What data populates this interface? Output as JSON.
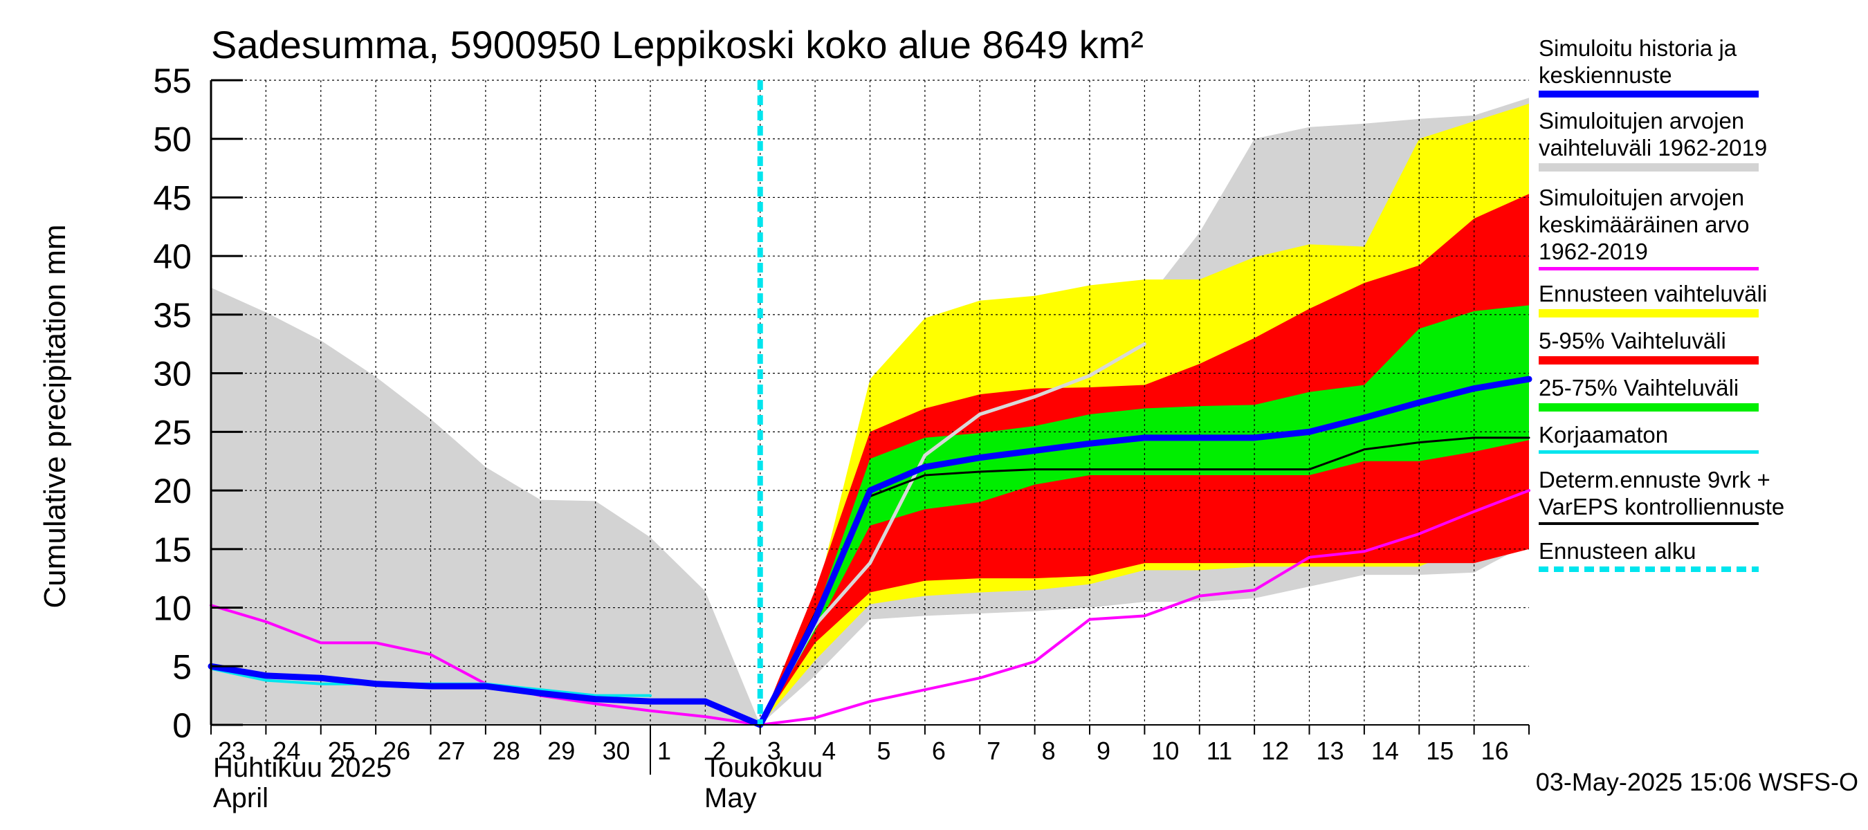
{
  "chart_data": {
    "type": "area",
    "title": "Sadesumma, 5900950 Leppikoski koko alue 8649 km²",
    "ylabel": "Cumulative precipitation   mm",
    "ylim": [
      0,
      55
    ],
    "yticks": [
      0,
      5,
      10,
      15,
      20,
      25,
      30,
      35,
      40,
      45,
      50,
      55
    ],
    "xlim": [
      0,
      24
    ],
    "grid": true,
    "forecast_start_x": 10,
    "day_ticks": [
      "23",
      "24",
      "25",
      "26",
      "27",
      "28",
      "29",
      "30",
      "1",
      "2",
      "3",
      "4",
      "5",
      "6",
      "7",
      "8",
      "9",
      "10",
      "11",
      "12",
      "13",
      "14",
      "15",
      "16"
    ],
    "month_labels": [
      {
        "line1": "Huhtikuu  2025",
        "line2": "April",
        "x": 0
      },
      {
        "line1": "Toukokuu",
        "line2": "May",
        "x": 9
      }
    ],
    "legend_position": "right",
    "series": [
      {
        "name": "Simuloitujen arvojen vaihteluväli 1962-2019",
        "kind": "band",
        "color": "#d3d3d3",
        "x": [
          0,
          1,
          2,
          3,
          4,
          5,
          6,
          7,
          8,
          9,
          10,
          11,
          12,
          13,
          14,
          15,
          16,
          17,
          18,
          19,
          20,
          21,
          22,
          23,
          24
        ],
        "upper": [
          37.3,
          35.2,
          32.8,
          29.7,
          26.1,
          22.0,
          19.2,
          19.1,
          16.0,
          11.4,
          0,
          9.5,
          25.0,
          33.0,
          34.0,
          34.8,
          35.5,
          36.0,
          42.0,
          50.0,
          51.0,
          51.3,
          51.7,
          52.0,
          53.5
        ],
        "lower": [
          0,
          0,
          0,
          0,
          0,
          0,
          0,
          0,
          0,
          0,
          0,
          4.2,
          9.0,
          9.3,
          9.5,
          9.7,
          10.0,
          10.5,
          10.5,
          10.8,
          11.8,
          12.8,
          12.8,
          13.0,
          15.5
        ]
      },
      {
        "name": "Ennusteen vaihteluväli",
        "kind": "band",
        "color": "#ffff00",
        "x": [
          10,
          11,
          12,
          13,
          14,
          15,
          16,
          17,
          18,
          19,
          20,
          21,
          22,
          23,
          24
        ],
        "upper": [
          0,
          10.5,
          29.5,
          34.7,
          36.2,
          36.6,
          37.5,
          38.0,
          38.0,
          39.9,
          41.0,
          40.8,
          50.0,
          51.5,
          53.0
        ],
        "lower": [
          0,
          5.5,
          10.3,
          11.0,
          11.3,
          11.5,
          12.0,
          13.2,
          13.2,
          13.5,
          13.5,
          13.5,
          13.5,
          15.5,
          15.5
        ]
      },
      {
        "name": "5-95% Vaihteluväli",
        "kind": "band",
        "color": "#ff0000",
        "x": [
          10,
          11,
          12,
          13,
          14,
          15,
          16,
          17,
          18,
          19,
          20,
          21,
          22,
          23,
          24
        ],
        "upper": [
          0,
          11.5,
          25.0,
          27.0,
          28.2,
          28.7,
          28.8,
          29.0,
          30.8,
          33.0,
          35.5,
          37.7,
          39.2,
          43.2,
          45.3
        ],
        "lower": [
          0,
          7.0,
          11.3,
          12.3,
          12.5,
          12.5,
          12.7,
          13.8,
          13.8,
          13.8,
          13.8,
          13.8,
          13.8,
          13.8,
          15.0
        ]
      },
      {
        "name": "25-75% Vaihteluväli",
        "kind": "band",
        "color": "#00ee00",
        "x": [
          10,
          11,
          12,
          13,
          14,
          15,
          16,
          17,
          18,
          19,
          20,
          21,
          22,
          23,
          24
        ],
        "upper": [
          0,
          9.3,
          22.7,
          24.5,
          24.9,
          25.5,
          26.5,
          27.0,
          27.2,
          27.3,
          28.4,
          29.0,
          33.8,
          35.3,
          35.8
        ],
        "lower": [
          0,
          8.0,
          17.0,
          18.4,
          19.0,
          20.5,
          21.3,
          21.3,
          21.3,
          21.3,
          21.3,
          22.5,
          22.5,
          23.3,
          24.3
        ]
      },
      {
        "name": "Simuloitujen arvojen keskimääräinen arvo\n   1962-2019",
        "kind": "line",
        "color": "#ff00ff",
        "width": 4,
        "x": [
          0,
          1,
          2,
          3,
          4,
          5,
          6,
          7,
          8,
          9,
          10,
          11,
          12,
          13,
          14,
          15,
          16,
          17,
          18,
          19,
          20,
          21,
          22,
          23,
          24
        ],
        "y": [
          10.2,
          8.8,
          7.0,
          7.0,
          6.0,
          3.5,
          2.5,
          1.8,
          1.2,
          0.7,
          0,
          0.6,
          2.0,
          3.0,
          4.0,
          5.4,
          9.0,
          9.3,
          11.0,
          11.5,
          14.3,
          14.8,
          16.3,
          18.2,
          20.0
        ]
      },
      {
        "name": "Korjaamaton",
        "kind": "line",
        "color": "#00e5ee",
        "width": 4,
        "x": [
          0,
          1,
          2,
          3,
          4,
          5,
          6,
          7,
          8
        ],
        "y": [
          4.8,
          3.8,
          3.5,
          3.5,
          3.5,
          3.5,
          3.0,
          2.5,
          2.5
        ]
      },
      {
        "name": "Simuloitu historia",
        "kind": "line",
        "color": "#d8d8d8",
        "width": 5,
        "x": [
          10,
          11,
          12,
          13,
          14,
          15,
          16,
          17
        ],
        "y": [
          0,
          8.5,
          13.8,
          23.0,
          26.5,
          28.0,
          29.8,
          32.5
        ]
      },
      {
        "name": "Determ.ennuste 9vrk +\nVarEPS kontrolliennuste",
        "kind": "line",
        "color": "#000000",
        "width": 3,
        "x": [
          10,
          11,
          12,
          13,
          14,
          15,
          16,
          17,
          18,
          19,
          20,
          21,
          22,
          23,
          24
        ],
        "y": [
          0,
          9.5,
          19.5,
          21.3,
          21.6,
          21.8,
          21.8,
          21.8,
          21.8,
          21.8,
          21.8,
          23.5,
          24.1,
          24.5,
          24.5
        ]
      },
      {
        "name": "Simuloitu historia ja\nkeskiennuste",
        "kind": "line",
        "color": "#0000ff",
        "width": 9,
        "x": [
          0,
          1,
          2,
          3,
          4,
          5,
          6,
          7,
          8,
          9,
          10,
          11,
          12,
          13,
          14,
          15,
          16,
          17,
          18,
          19,
          20,
          21,
          22,
          23,
          24
        ],
        "y": [
          5.0,
          4.2,
          4.0,
          3.5,
          3.3,
          3.3,
          2.7,
          2.2,
          2.0,
          2.0,
          0,
          9.0,
          20.0,
          22.0,
          22.8,
          23.4,
          24.0,
          24.5,
          24.5,
          24.5,
          25.0,
          26.2,
          27.5,
          28.7,
          29.5
        ]
      },
      {
        "name": "Ennusteen alku",
        "kind": "vline",
        "color": "#00e5ee",
        "width": 8,
        "x": 10
      }
    ],
    "legend": [
      {
        "label": "Simuloitu historia ja\nkeskiennuste",
        "color": "#0000ff",
        "thickness": 10
      },
      {
        "label": "Simuloitujen arvojen\nvaihteluväli 1962-2019",
        "color": "#d3d3d3",
        "thickness": 12
      },
      {
        "label": "Simuloitujen arvojen\nkeskimääräinen arvo\n   1962-2019",
        "color": "#ff00ff",
        "thickness": 5
      },
      {
        "label": "Ennusteen vaihteluväli",
        "color": "#ffff00",
        "thickness": 12
      },
      {
        "label": "5-95% Vaihteluväli",
        "color": "#ff0000",
        "thickness": 12
      },
      {
        "label": "25-75% Vaihteluväli",
        "color": "#00ee00",
        "thickness": 12
      },
      {
        "label": "Korjaamaton",
        "color": "#00e5ee",
        "thickness": 5
      },
      {
        "label": "Determ.ennuste 9vrk +\nVarEPS kontrolliennuste",
        "color": "#000000",
        "thickness": 4
      },
      {
        "label": "Ennusteen alku",
        "color": "#00e5ee",
        "thickness": 8,
        "dashed": true
      }
    ],
    "footer": "03-May-2025 15:06 WSFS-O"
  }
}
